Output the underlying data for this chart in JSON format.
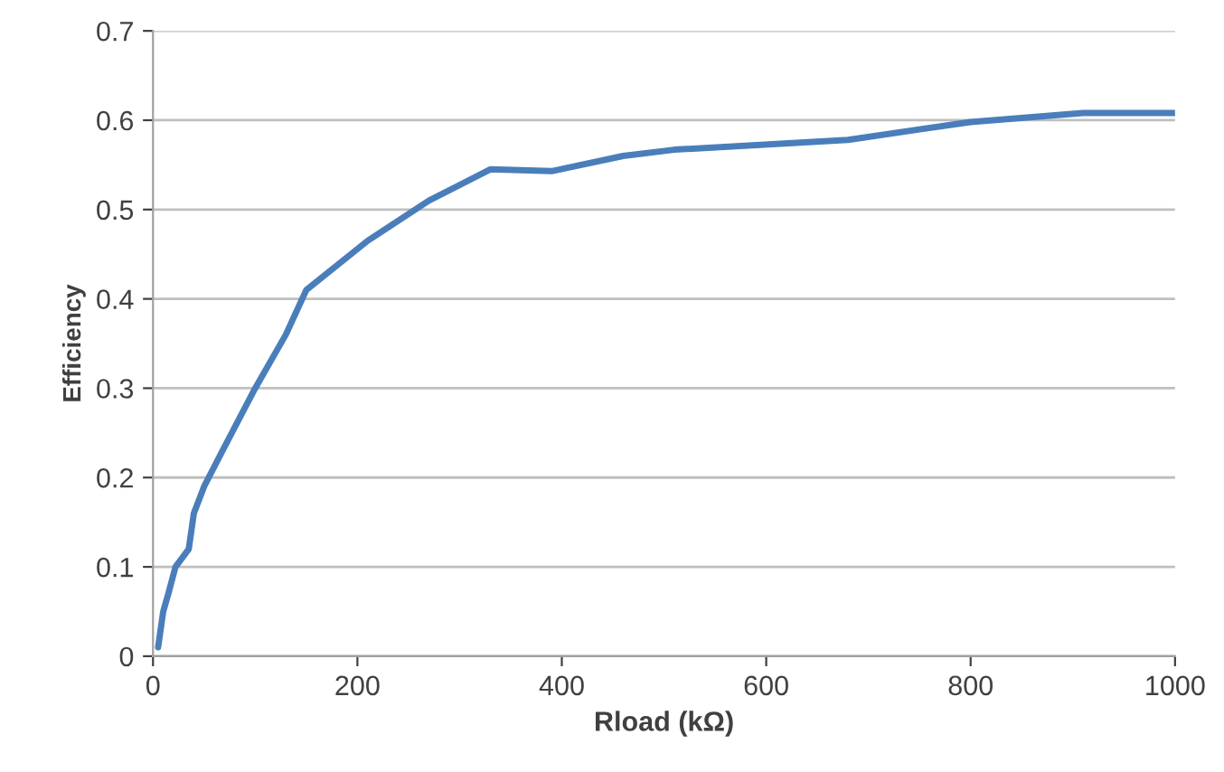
{
  "chart_data": {
    "type": "line",
    "xlabel": "Rload (kΩ)",
    "ylabel": "Efficiency",
    "xlim": [
      0,
      1000
    ],
    "xticks": [
      0,
      200,
      400,
      600,
      800,
      1000
    ],
    "ylim": [
      0,
      0.7
    ],
    "yticks": [
      0,
      0.1,
      0.2,
      0.3,
      0.4,
      0.5,
      0.6,
      0.7
    ],
    "grid": "y",
    "marker": "none",
    "line_style": "solid",
    "series": [
      {
        "color": "#4a7ebb",
        "x": [
          5,
          10,
          15,
          22,
          35,
          40,
          50,
          68,
          100,
          130,
          150,
          210,
          270,
          330,
          390,
          460,
          510,
          680,
          800,
          910,
          1000
        ],
        "values": [
          0.01,
          0.05,
          0.07,
          0.1,
          0.12,
          0.16,
          0.19,
          0.23,
          0.3,
          0.36,
          0.41,
          0.465,
          0.51,
          0.545,
          0.543,
          0.56,
          0.567,
          0.578,
          0.598,
          0.608,
          0.608
        ]
      }
    ]
  }
}
